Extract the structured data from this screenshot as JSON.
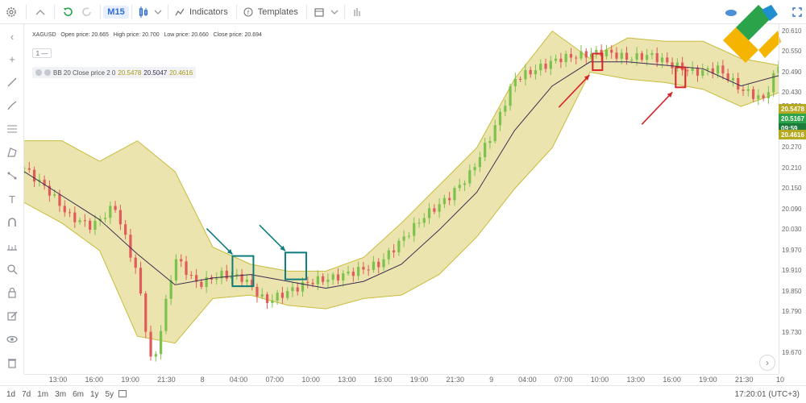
{
  "toolbar": {
    "timeframe": "M15",
    "indicators_label": "Indicators",
    "templates_label": "Templates"
  },
  "legend": {
    "symbol": "XAGUSD",
    "open": "Open price: 20.665",
    "high": "High price: 20.700",
    "low": "Low price: 20.660",
    "close": "Close price: 20.694",
    "pane_count": "1 —",
    "bb_label": "BB 20 Close price 2 0",
    "bb_upper": "20.5478",
    "bb_middle": "20.5047",
    "bb_lower": "20.4616"
  },
  "price_tags": {
    "upper": "20.5478",
    "middle": "20.5167",
    "countdown": "09:59",
    "lower": "20.4616"
  },
  "bottom": {
    "periods": [
      "1d",
      "7d",
      "1m",
      "3m",
      "6m",
      "1y",
      "5y"
    ],
    "clock": "17:20:01 (UTC+3)"
  },
  "colors": {
    "band_fill": "#e8dfa0",
    "band_line": "#c7bc3c",
    "middle_line": "#3a2d4f",
    "bull": "#7cc24d",
    "bear": "#e15b5b",
    "entry_box": "#0f7c7c",
    "exit_box": "#d9232a",
    "price_line": "#2aa34a"
  },
  "chart_data": {
    "type": "candlestick",
    "instrument": "XAGUSD",
    "timeframe": "M15",
    "ylim": [
      19.61,
      20.63
    ],
    "yticks": [
      20.61,
      20.55,
      20.49,
      20.43,
      20.39,
      20.33,
      20.27,
      20.21,
      20.15,
      20.09,
      20.03,
      19.97,
      19.91,
      19.85,
      19.79,
      19.73,
      19.67
    ],
    "xticks": [
      "13:00",
      "16:00",
      "19:00",
      "21:30",
      "8",
      "04:00",
      "07:00",
      "10:00",
      "13:00",
      "16:00",
      "19:00",
      "21:30",
      "9",
      "04:00",
      "07:00",
      "10:00",
      "13:00",
      "16:00",
      "19:00",
      "21:30",
      "10"
    ],
    "series": [
      {
        "name": "Bollinger upper",
        "x": [
          0,
          5,
          10,
          15,
          20,
          25,
          30,
          35,
          40,
          45,
          50,
          55,
          60,
          65,
          70,
          75,
          80,
          85,
          90,
          95,
          100
        ],
        "values": [
          20.29,
          20.29,
          20.23,
          20.29,
          20.2,
          19.98,
          19.93,
          19.91,
          19.91,
          19.95,
          20.05,
          20.16,
          20.27,
          20.47,
          20.61,
          20.53,
          20.59,
          20.58,
          20.58,
          20.53,
          20.51
        ]
      },
      {
        "name": "Bollinger middle",
        "x": [
          0,
          5,
          10,
          15,
          20,
          25,
          30,
          35,
          40,
          45,
          50,
          55,
          60,
          65,
          70,
          75,
          80,
          85,
          90,
          95,
          100
        ],
        "values": [
          20.2,
          20.13,
          20.06,
          19.96,
          19.87,
          19.89,
          19.9,
          19.88,
          19.86,
          19.88,
          19.93,
          20.03,
          20.14,
          20.32,
          20.45,
          20.52,
          20.52,
          20.51,
          20.5,
          20.45,
          20.48
        ]
      },
      {
        "name": "Bollinger lower",
        "x": [
          0,
          5,
          10,
          15,
          20,
          25,
          30,
          35,
          40,
          45,
          50,
          55,
          60,
          65,
          70,
          75,
          80,
          85,
          90,
          95,
          100
        ],
        "values": [
          20.11,
          20.05,
          19.97,
          19.72,
          19.7,
          19.83,
          19.84,
          19.81,
          19.8,
          19.83,
          19.84,
          19.9,
          20.01,
          20.15,
          20.27,
          20.49,
          20.47,
          20.46,
          20.44,
          20.39,
          20.43
        ]
      },
      {
        "name": "Close",
        "x": [
          0,
          3,
          6,
          9,
          12,
          15,
          17,
          20,
          23,
          26,
          29,
          32,
          35,
          38,
          41,
          44,
          47,
          50,
          53,
          56,
          59,
          62,
          65,
          68,
          71,
          74,
          77,
          80,
          83,
          86,
          89,
          92,
          95,
          98,
          100
        ],
        "values": [
          20.21,
          20.15,
          20.07,
          20.04,
          20.1,
          19.9,
          19.62,
          19.95,
          19.87,
          19.9,
          19.89,
          19.82,
          19.85,
          19.88,
          19.89,
          19.91,
          19.93,
          20.0,
          20.07,
          20.12,
          20.19,
          20.31,
          20.47,
          20.5,
          20.53,
          20.54,
          20.55,
          20.53,
          20.54,
          20.51,
          20.49,
          20.5,
          20.44,
          20.41,
          20.51
        ]
      }
    ],
    "annotations": [
      {
        "kind": "entry",
        "x": 29,
        "low": 19.88,
        "high": 19.94
      },
      {
        "kind": "entry",
        "x": 36,
        "low": 19.9,
        "high": 19.95
      },
      {
        "kind": "exit",
        "x": 76,
        "low": 20.51,
        "high": 20.53
      },
      {
        "kind": "exit",
        "x": 87,
        "low": 20.46,
        "high": 20.49
      }
    ],
    "current_price": 20.5167,
    "last_close_line": 20.694
  }
}
